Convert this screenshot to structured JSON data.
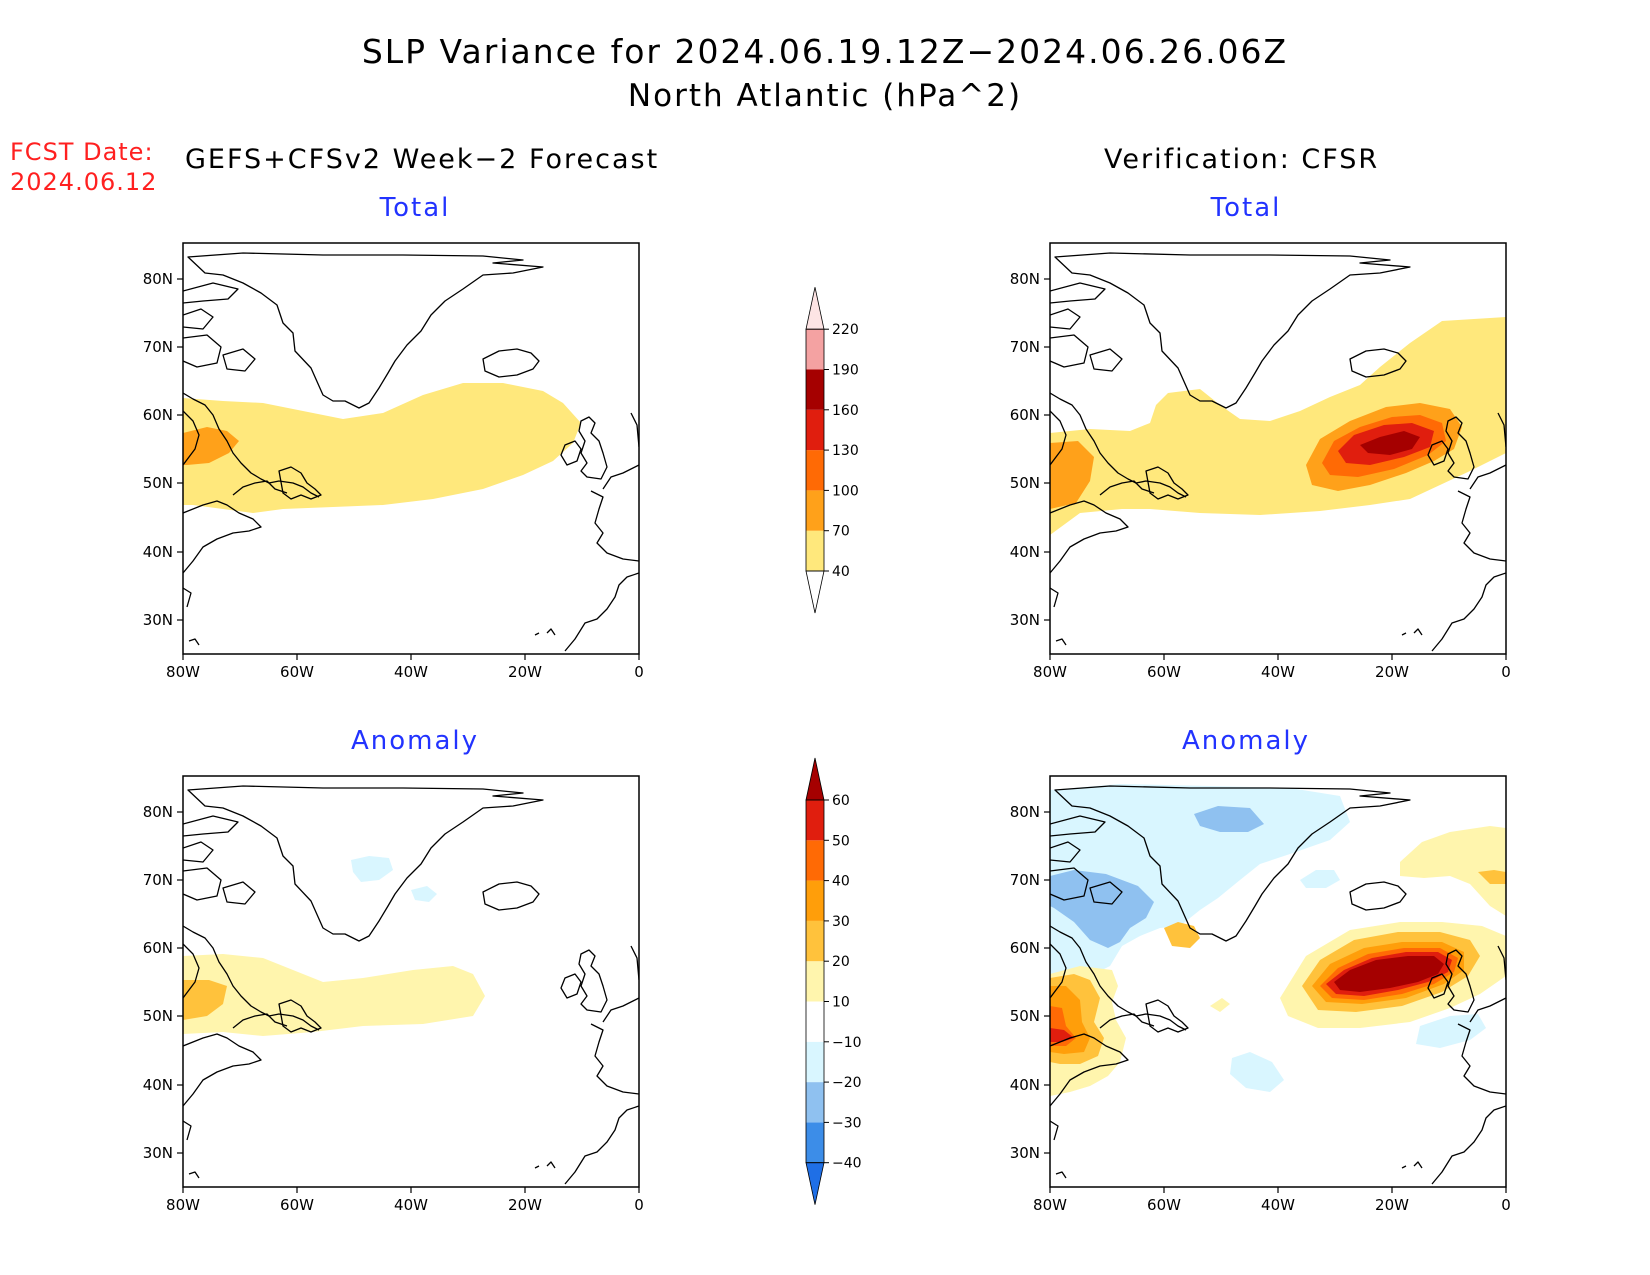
{
  "title_line1": "SLP Variance for 2024.06.19.12Z−2024.06.26.06Z",
  "title_line2": "North Atlantic (hPa^2)",
  "fcst_label": "FCST Date:",
  "fcst_date": "2024.06.12",
  "left_heading": "GEFS+CFSv2 Week−2 Forecast",
  "right_heading": "Verification: CFSR",
  "panel_titles": {
    "top": "Total",
    "bottom": "Anomaly"
  },
  "lat_labels": [
    "80N",
    "70N",
    "60N",
    "50N",
    "40N",
    "30N"
  ],
  "lon_labels": [
    "80W",
    "60W",
    "40W",
    "20W",
    "0"
  ],
  "total_colorbar": {
    "levels": [
      "40",
      "70",
      "100",
      "130",
      "160",
      "190",
      "220"
    ],
    "colors": [
      "#ffe87c",
      "#ffa11a",
      "#ff6a05",
      "#e01e0e",
      "#a50000",
      "#f4a2a2",
      "#fde4e4"
    ]
  },
  "anomaly_colorbar": {
    "levels": [
      "−40",
      "−30",
      "−20",
      "−10",
      "10",
      "20",
      "30",
      "40",
      "50",
      "60"
    ],
    "colors": [
      "#1f6fe6",
      "#3c8de8",
      "#8fc1f0",
      "#d9f6ff",
      "#ffffff",
      "#fff5ad",
      "#ffc23c",
      "#ff9e0a",
      "#ff6a05",
      "#e01e0e",
      "#a50000"
    ]
  }
}
